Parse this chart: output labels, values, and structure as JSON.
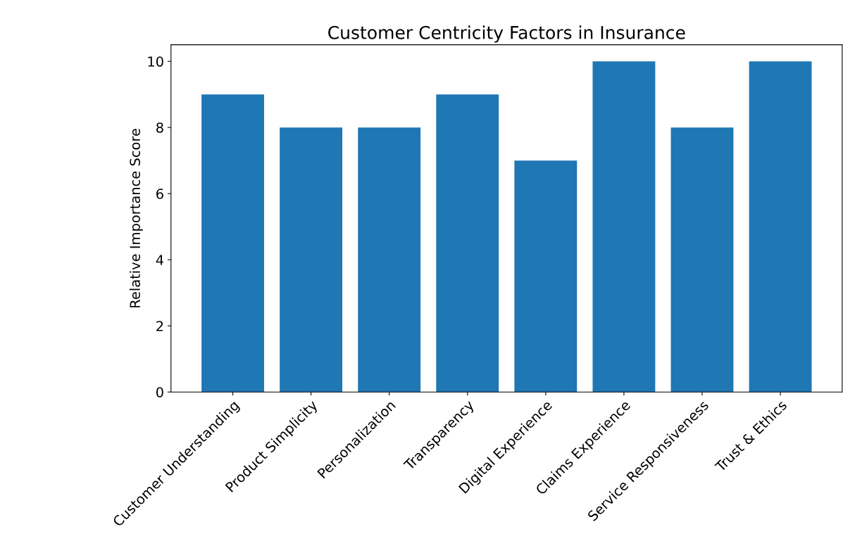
{
  "chart_data": {
    "type": "bar",
    "title": "Customer Centricity Factors in Insurance",
    "ylabel": "Relative Importance Score",
    "categories": [
      "Customer Understanding",
      "Product Simplicity",
      "Personalization",
      "Transparency",
      "Digital Experience",
      "Claims Experience",
      "Service Responsiveness",
      "Trust & Ethics"
    ],
    "values": [
      9,
      8,
      8,
      9,
      7,
      10,
      8,
      10
    ],
    "color": "#1f77b4",
    "ylim": [
      0,
      10.5
    ],
    "yticks": [
      0,
      2,
      4,
      6,
      8,
      10
    ],
    "grid": false,
    "legend": false
  }
}
